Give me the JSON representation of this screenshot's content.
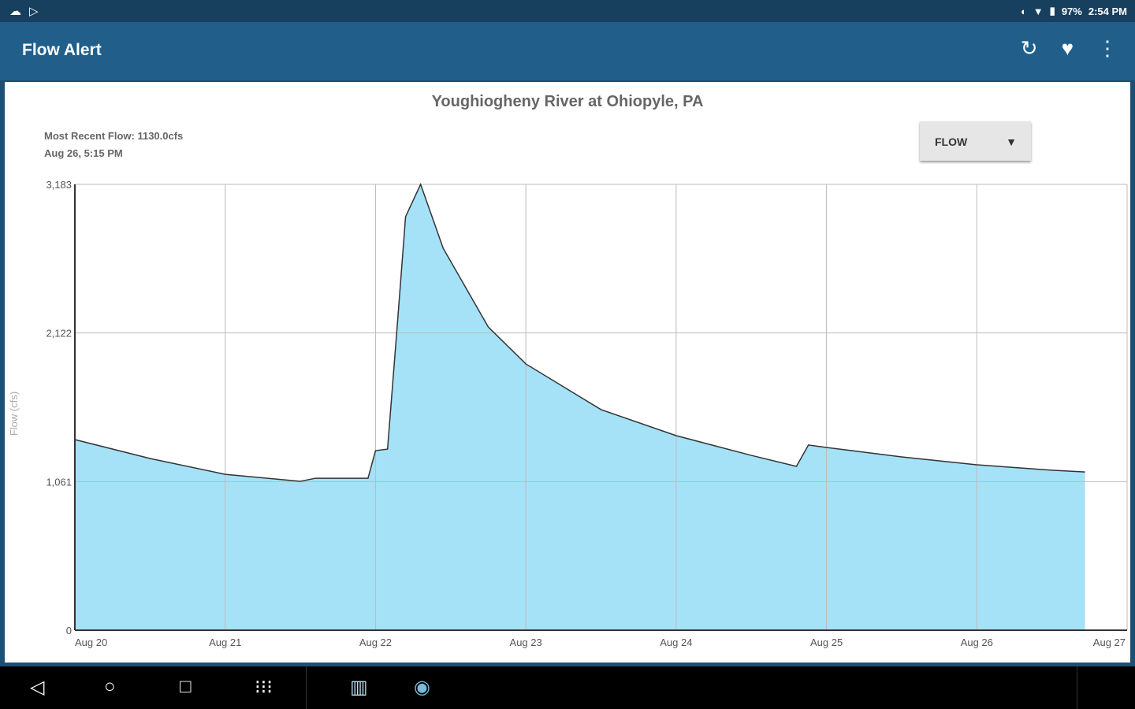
{
  "status": {
    "battery": "97%",
    "time": "2:54 PM"
  },
  "appbar": {
    "title": "Flow Alert"
  },
  "card": {
    "river": "Youghiogheny River at Ohiopyle, PA",
    "recent_flow": "Most Recent Flow: 1130.0cfs",
    "recent_time": "Aug 26, 5:15 PM",
    "dropdown": "FLOW"
  },
  "chart_data": {
    "type": "area",
    "ylabel": "Flow (cfs)",
    "ylim": [
      0,
      3183
    ],
    "yticks": [
      0,
      1061,
      2122,
      3183
    ],
    "ytick_labels": [
      "0",
      "1,061",
      "2,122",
      "3,183"
    ],
    "xticks": [
      "Aug 20",
      "Aug 21",
      "Aug 22",
      "Aug 23",
      "Aug 24",
      "Aug 25",
      "Aug 26",
      "Aug 27"
    ],
    "xlim_days": [
      0,
      7
    ],
    "grid": true,
    "color": "#a5e2f8",
    "x_days": [
      0,
      0.5,
      1,
      1.5,
      1.6,
      1.95,
      2.0,
      2.08,
      2.15,
      2.2,
      2.3,
      2.45,
      2.75,
      3.0,
      3.5,
      4.0,
      4.5,
      4.8,
      4.88,
      5.0,
      5.5,
      6.0,
      6.5,
      6.72
    ],
    "values": [
      1361,
      1226,
      1113,
      1063,
      1085,
      1085,
      1282,
      1293,
      2250,
      2952,
      3183,
      2727,
      2165,
      1901,
      1575,
      1389,
      1248,
      1170,
      1322,
      1305,
      1237,
      1181,
      1142,
      1130
    ]
  }
}
